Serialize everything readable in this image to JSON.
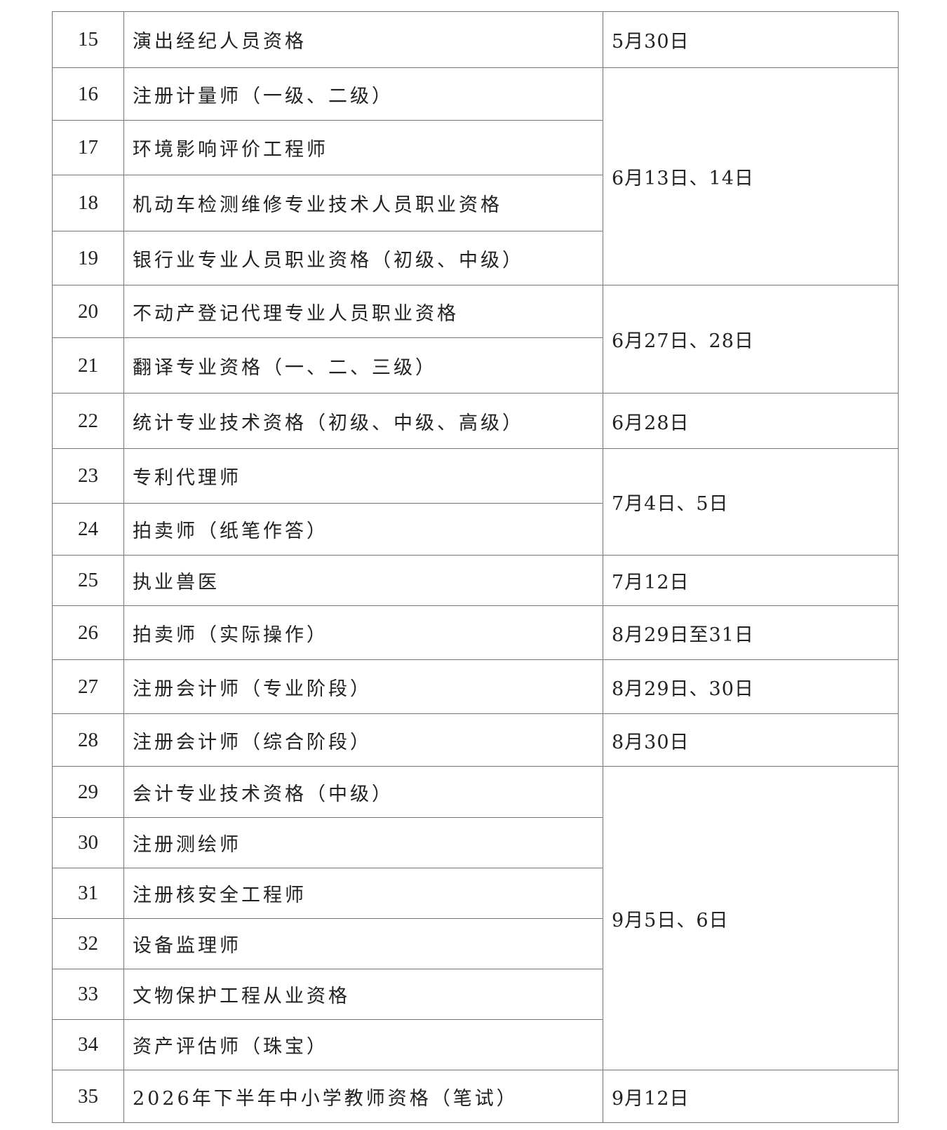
{
  "rows": [
    {
      "no": "15",
      "name": "演出经纪人员资格",
      "date": "5月30日"
    },
    {
      "no": "16",
      "name": "注册计量师（一级、二级）",
      "date": "6月13日、14日"
    },
    {
      "no": "17",
      "name": "环境影响评价工程师"
    },
    {
      "no": "18",
      "name": "机动车检测维修专业技术人员职业资格"
    },
    {
      "no": "19",
      "name": "银行业专业人员职业资格（初级、中级）"
    },
    {
      "no": "20",
      "name": "不动产登记代理专业人员职业资格",
      "date": "6月27日、28日"
    },
    {
      "no": "21",
      "name": "翻译专业资格（一、二、三级）"
    },
    {
      "no": "22",
      "name": "统计专业技术资格（初级、中级、高级）",
      "date": "6月28日"
    },
    {
      "no": "23",
      "name": "专利代理师",
      "date": "7月4日、5日"
    },
    {
      "no": "24",
      "name": "拍卖师（纸笔作答）"
    },
    {
      "no": "25",
      "name": "执业兽医",
      "date": "7月12日"
    },
    {
      "no": "26",
      "name": "拍卖师（实际操作）",
      "date": "8月29日至31日"
    },
    {
      "no": "27",
      "name": "注册会计师（专业阶段）",
      "date": "8月29日、30日"
    },
    {
      "no": "28",
      "name": "注册会计师（综合阶段）",
      "date": "8月30日"
    },
    {
      "no": "29",
      "name": "会计专业技术资格（中级）",
      "date": "9月5日、6日"
    },
    {
      "no": "30",
      "name": "注册测绘师"
    },
    {
      "no": "31",
      "name": "注册核安全工程师"
    },
    {
      "no": "32",
      "name": "设备监理师"
    },
    {
      "no": "33",
      "name": "文物保护工程从业资格"
    },
    {
      "no": "34",
      "name": "资产评估师（珠宝）"
    },
    {
      "no": "35",
      "name": "2026年下半年中小学教师资格（笔试）",
      "date": "9月12日"
    }
  ]
}
